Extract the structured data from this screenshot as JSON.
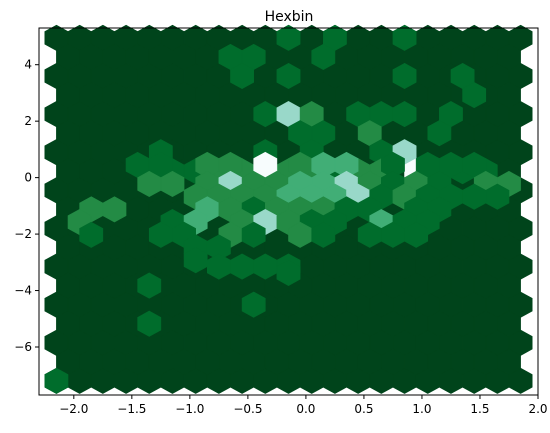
{
  "chart_data": {
    "type": "heatmap",
    "subtype": "hexbin",
    "title": "Hexbin",
    "xlabel": "",
    "ylabel": "",
    "xlim": [
      -2.3,
      2.0
    ],
    "ylim": [
      -7.7,
      5.3
    ],
    "grid": false,
    "colormap": "BuGn",
    "xticks": [
      -2.0,
      -1.5,
      -1.0,
      -0.5,
      0.0,
      0.5,
      1.0,
      1.5,
      2.0
    ],
    "xtick_labels": [
      "−2.0",
      "−1.5",
      "−1.0",
      "−0.5",
      "0.0",
      "0.5",
      "1.0",
      "1.5",
      "2.0"
    ],
    "yticks": [
      4,
      2,
      0,
      -2,
      -4,
      -6
    ],
    "ytick_labels": [
      "4",
      "2",
      "0",
      "−2",
      "−4",
      "−6"
    ],
    "hex_grid": {
      "x_min": -2.15,
      "x_max": 1.85,
      "y_min": -7.2,
      "y_max": 4.95,
      "x_step": 0.2,
      "y_step": 0.675
    },
    "bins": [
      {
        "x": -2.15,
        "y": -7.2,
        "level": 1
      },
      {
        "x": -0.15,
        "y": 4.95,
        "level": 1
      },
      {
        "x": 0.25,
        "y": 4.95,
        "level": 1
      },
      {
        "x": 0.85,
        "y": 4.95,
        "level": 1
      },
      {
        "x": -0.65,
        "y": 4.275,
        "level": 1
      },
      {
        "x": -0.45,
        "y": 4.275,
        "level": 1
      },
      {
        "x": 0.15,
        "y": 4.275,
        "level": 1
      },
      {
        "x": -0.55,
        "y": 3.6,
        "level": 1
      },
      {
        "x": -0.15,
        "y": 3.6,
        "level": 1
      },
      {
        "x": 0.85,
        "y": 3.6,
        "level": 1
      },
      {
        "x": 1.35,
        "y": 3.6,
        "level": 1
      },
      {
        "x": 1.45,
        "y": 2.925,
        "level": 1
      },
      {
        "x": -0.35,
        "y": 2.25,
        "level": 1
      },
      {
        "x": -0.15,
        "y": 2.25,
        "level": 4
      },
      {
        "x": 0.05,
        "y": 2.25,
        "level": 2
      },
      {
        "x": 0.45,
        "y": 2.25,
        "level": 1
      },
      {
        "x": 0.65,
        "y": 2.25,
        "level": 1
      },
      {
        "x": 0.85,
        "y": 2.25,
        "level": 1
      },
      {
        "x": 1.25,
        "y": 2.25,
        "level": 1
      },
      {
        "x": -0.05,
        "y": 1.575,
        "level": 1
      },
      {
        "x": 0.15,
        "y": 1.575,
        "level": 1
      },
      {
        "x": 0.55,
        "y": 1.575,
        "level": 2
      },
      {
        "x": 1.15,
        "y": 1.575,
        "level": 1
      },
      {
        "x": -1.25,
        "y": 0.9,
        "level": 1
      },
      {
        "x": -0.35,
        "y": 0.9,
        "level": 1
      },
      {
        "x": 0.05,
        "y": 0.9,
        "level": 1
      },
      {
        "x": 0.65,
        "y": 0.9,
        "level": 1
      },
      {
        "x": 0.85,
        "y": 0.9,
        "level": 4
      },
      {
        "x": -1.35,
        "y": 0.225,
        "level": 2
      },
      {
        "x": -1.15,
        "y": 0.225,
        "level": 1
      },
      {
        "x": -0.95,
        "y": 0.225,
        "level": 1
      },
      {
        "x": -0.75,
        "y": 0.225,
        "level": 2
      },
      {
        "x": -0.55,
        "y": 0.225,
        "level": 2
      },
      {
        "x": -0.15,
        "y": 0.225,
        "level": 2
      },
      {
        "x": 0.05,
        "y": 0.225,
        "level": 2
      },
      {
        "x": 0.25,
        "y": 0.225,
        "level": 1
      },
      {
        "x": 0.45,
        "y": 0.225,
        "level": 2
      },
      {
        "x": 0.65,
        "y": 0.225,
        "level": 2
      },
      {
        "x": 0.95,
        "y": 0.225,
        "level": 5
      },
      {
        "x": 1.15,
        "y": 0.225,
        "level": 1
      },
      {
        "x": 1.35,
        "y": 0.225,
        "level": 1
      },
      {
        "x": 1.55,
        "y": 0.225,
        "level": 1
      },
      {
        "x": -1.45,
        "y": 0.45,
        "level": 1
      },
      {
        "x": -1.25,
        "y": 0.45,
        "level": 1
      },
      {
        "x": -0.85,
        "y": 0.45,
        "level": 2
      },
      {
        "x": -0.65,
        "y": 0.45,
        "level": 2
      },
      {
        "x": -0.35,
        "y": 0.45,
        "level": 5
      },
      {
        "x": -0.05,
        "y": 0.45,
        "level": 2
      },
      {
        "x": 0.15,
        "y": 0.45,
        "level": 3
      },
      {
        "x": 0.35,
        "y": 0.45,
        "level": 3
      },
      {
        "x": 0.75,
        "y": 0.45,
        "level": 1
      },
      {
        "x": 1.05,
        "y": 0.45,
        "level": 1
      },
      {
        "x": 1.25,
        "y": 0.45,
        "level": 1
      },
      {
        "x": 1.45,
        "y": 0.45,
        "level": 1
      },
      {
        "x": -1.35,
        "y": -0.225,
        "level": 2
      },
      {
        "x": -1.15,
        "y": -0.225,
        "level": 2
      },
      {
        "x": -0.85,
        "y": -0.225,
        "level": 2
      },
      {
        "x": -0.65,
        "y": -0.225,
        "level": 4
      },
      {
        "x": -0.45,
        "y": -0.225,
        "level": 2
      },
      {
        "x": -0.25,
        "y": -0.225,
        "level": 2
      },
      {
        "x": -0.05,
        "y": -0.225,
        "level": 3
      },
      {
        "x": 0.15,
        "y": -0.225,
        "level": 3
      },
      {
        "x": 0.35,
        "y": -0.225,
        "level": 4
      },
      {
        "x": 0.55,
        "y": -0.225,
        "level": 2
      },
      {
        "x": 0.75,
        "y": -0.225,
        "level": 1
      },
      {
        "x": 0.95,
        "y": -0.225,
        "level": 2
      },
      {
        "x": 1.15,
        "y": -0.225,
        "level": 1
      },
      {
        "x": 1.55,
        "y": -0.225,
        "level": 2
      },
      {
        "x": 1.75,
        "y": -0.225,
        "level": 2
      },
      {
        "x": -0.95,
        "y": -0.675,
        "level": 2
      },
      {
        "x": -0.75,
        "y": -0.675,
        "level": 2
      },
      {
        "x": -0.55,
        "y": -0.675,
        "level": 2
      },
      {
        "x": -0.35,
        "y": -0.675,
        "level": 2
      },
      {
        "x": -0.15,
        "y": -0.675,
        "level": 3
      },
      {
        "x": 0.05,
        "y": -0.675,
        "level": 3
      },
      {
        "x": 0.25,
        "y": -0.675,
        "level": 3
      },
      {
        "x": 0.45,
        "y": -0.675,
        "level": 4
      },
      {
        "x": 0.65,
        "y": -0.675,
        "level": 1
      },
      {
        "x": 0.85,
        "y": -0.675,
        "level": 2
      },
      {
        "x": 1.05,
        "y": -0.675,
        "level": 1
      },
      {
        "x": 1.25,
        "y": -0.675,
        "level": 1
      },
      {
        "x": 1.45,
        "y": -0.675,
        "level": 1
      },
      {
        "x": 1.65,
        "y": -0.675,
        "level": 1
      },
      {
        "x": -1.85,
        "y": -1.125,
        "level": 2
      },
      {
        "x": -1.65,
        "y": -1.125,
        "level": 2
      },
      {
        "x": -0.85,
        "y": -1.125,
        "level": 3
      },
      {
        "x": -0.65,
        "y": -1.125,
        "level": 2
      },
      {
        "x": -0.45,
        "y": -1.125,
        "level": 1
      },
      {
        "x": -0.25,
        "y": -1.125,
        "level": 2
      },
      {
        "x": -0.05,
        "y": -1.125,
        "level": 2
      },
      {
        "x": 0.15,
        "y": -1.125,
        "level": 2
      },
      {
        "x": 0.35,
        "y": -1.125,
        "level": 1
      },
      {
        "x": 0.55,
        "y": -1.125,
        "level": 1
      },
      {
        "x": 0.95,
        "y": -1.125,
        "level": 1
      },
      {
        "x": 1.15,
        "y": -1.125,
        "level": 1
      },
      {
        "x": -1.95,
        "y": -1.575,
        "level": 2
      },
      {
        "x": -1.15,
        "y": -1.575,
        "level": 1
      },
      {
        "x": -0.95,
        "y": -1.575,
        "level": 3
      },
      {
        "x": -0.55,
        "y": -1.575,
        "level": 2
      },
      {
        "x": -0.35,
        "y": -1.575,
        "level": 4
      },
      {
        "x": -0.15,
        "y": -1.575,
        "level": 2
      },
      {
        "x": 0.05,
        "y": -1.575,
        "level": 1
      },
      {
        "x": 0.25,
        "y": -1.575,
        "level": 1
      },
      {
        "x": 0.65,
        "y": -1.575,
        "level": 3
      },
      {
        "x": 0.85,
        "y": -1.575,
        "level": 1
      },
      {
        "x": 1.05,
        "y": -1.575,
        "level": 1
      },
      {
        "x": -1.85,
        "y": -2.025,
        "level": 1
      },
      {
        "x": -1.25,
        "y": -2.025,
        "level": 1
      },
      {
        "x": -1.05,
        "y": -2.025,
        "level": 1
      },
      {
        "x": -0.65,
        "y": -2.025,
        "level": 2
      },
      {
        "x": -0.45,
        "y": -2.025,
        "level": 1
      },
      {
        "x": -0.05,
        "y": -2.025,
        "level": 2
      },
      {
        "x": 0.15,
        "y": -2.025,
        "level": 1
      },
      {
        "x": 0.55,
        "y": -2.025,
        "level": 1
      },
      {
        "x": 0.75,
        "y": -2.025,
        "level": 1
      },
      {
        "x": 0.95,
        "y": -2.025,
        "level": 1
      },
      {
        "x": -0.95,
        "y": -2.475,
        "level": 1
      },
      {
        "x": -0.75,
        "y": -2.475,
        "level": 1
      },
      {
        "x": -0.75,
        "y": -3.15,
        "level": 1
      },
      {
        "x": -0.55,
        "y": -3.15,
        "level": 1
      },
      {
        "x": -0.35,
        "y": -3.15,
        "level": 1
      },
      {
        "x": -0.15,
        "y": -3.15,
        "level": 1
      },
      {
        "x": -0.95,
        "y": -2.925,
        "level": 1
      },
      {
        "x": -0.15,
        "y": -3.375,
        "level": 1
      },
      {
        "x": -1.35,
        "y": -3.825,
        "level": 1
      },
      {
        "x": -0.45,
        "y": -4.5,
        "level": 1
      },
      {
        "x": -1.35,
        "y": -5.175,
        "level": 1
      }
    ]
  }
}
